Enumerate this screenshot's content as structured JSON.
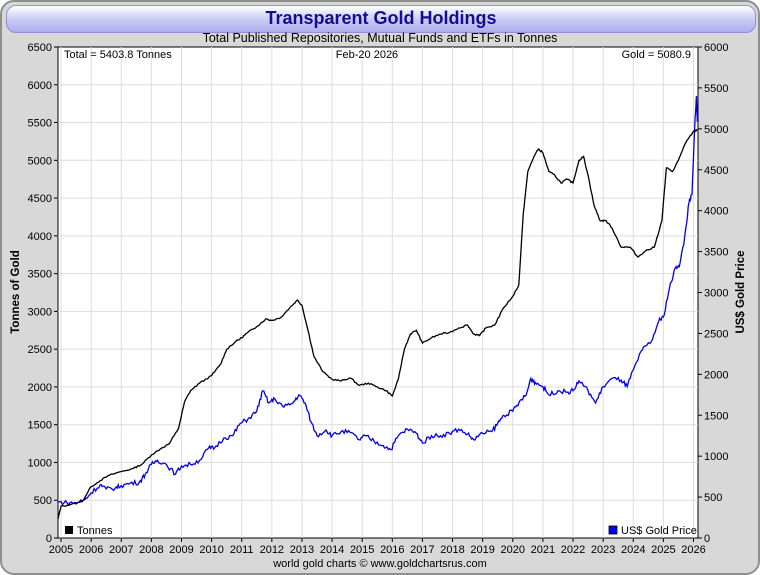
{
  "chart_data": {
    "type": "line",
    "title": "Transparent Gold Holdings",
    "subtitle": "Total Published Repositories, Mutual Funds and ETFs in Tonnes",
    "date_label": "Feb-20  2026",
    "total_label": "Total = 5403.8 Tonnes",
    "gold_label": "Gold = 5080.9",
    "ylabel_left": "Tonnes of Gold",
    "ylabel_right": "US$ Gold Price",
    "ylim_left": [
      0,
      6500
    ],
    "ylim_right": [
      0,
      6000
    ],
    "yticks_left": [
      "0",
      "500",
      "1000",
      "1500",
      "2000",
      "2500",
      "3000",
      "3500",
      "4000",
      "4500",
      "5000",
      "5500",
      "6000",
      "6500"
    ],
    "yticks_right": [
      "0",
      "500",
      "1000",
      "1500",
      "2000",
      "2500",
      "3000",
      "3500",
      "4000",
      "4500",
      "5000",
      "5500",
      "6000"
    ],
    "xticks": [
      "2005",
      "2006",
      "2007",
      "2008",
      "2009",
      "2010",
      "2011",
      "2012",
      "2013",
      "2014",
      "2015",
      "2016",
      "2017",
      "2018",
      "2019",
      "2020",
      "2021",
      "2022",
      "2023",
      "2024",
      "2025",
      "2026"
    ],
    "xlim": [
      2004.9,
      2026.15
    ],
    "grid": true,
    "legend_placement": "bottom",
    "footer": "world gold charts © www.goldchartsrus.com",
    "series": [
      {
        "name": "Tonnes",
        "axis": "left",
        "color": "#000000",
        "points": [
          [
            2004.9,
            250
          ],
          [
            2005.0,
            420
          ],
          [
            2005.3,
            440
          ],
          [
            2005.7,
            480
          ],
          [
            2006.0,
            680
          ],
          [
            2006.3,
            760
          ],
          [
            2006.6,
            830
          ],
          [
            2007.0,
            880
          ],
          [
            2007.4,
            920
          ],
          [
            2007.7,
            980
          ],
          [
            2008.0,
            1100
          ],
          [
            2008.3,
            1180
          ],
          [
            2008.6,
            1250
          ],
          [
            2008.9,
            1450
          ],
          [
            2009.1,
            1800
          ],
          [
            2009.3,
            1950
          ],
          [
            2009.6,
            2050
          ],
          [
            2010.0,
            2150
          ],
          [
            2010.3,
            2300
          ],
          [
            2010.5,
            2500
          ],
          [
            2010.8,
            2600
          ],
          [
            2011.0,
            2650
          ],
          [
            2011.2,
            2720
          ],
          [
            2011.5,
            2800
          ],
          [
            2011.8,
            2900
          ],
          [
            2012.0,
            2880
          ],
          [
            2012.3,
            2920
          ],
          [
            2012.6,
            3050
          ],
          [
            2012.85,
            3150
          ],
          [
            2013.0,
            3080
          ],
          [
            2013.2,
            2750
          ],
          [
            2013.4,
            2400
          ],
          [
            2013.7,
            2200
          ],
          [
            2014.0,
            2100
          ],
          [
            2014.3,
            2080
          ],
          [
            2014.6,
            2120
          ],
          [
            2014.9,
            2020
          ],
          [
            2015.2,
            2050
          ],
          [
            2015.5,
            2000
          ],
          [
            2015.8,
            1950
          ],
          [
            2016.0,
            1880
          ],
          [
            2016.2,
            2100
          ],
          [
            2016.4,
            2500
          ],
          [
            2016.6,
            2700
          ],
          [
            2016.8,
            2750
          ],
          [
            2017.0,
            2580
          ],
          [
            2017.3,
            2650
          ],
          [
            2017.6,
            2700
          ],
          [
            2017.9,
            2720
          ],
          [
            2018.2,
            2780
          ],
          [
            2018.5,
            2820
          ],
          [
            2018.7,
            2700
          ],
          [
            2018.9,
            2680
          ],
          [
            2019.1,
            2780
          ],
          [
            2019.4,
            2820
          ],
          [
            2019.7,
            3050
          ],
          [
            2020.0,
            3200
          ],
          [
            2020.2,
            3350
          ],
          [
            2020.35,
            4300
          ],
          [
            2020.5,
            4850
          ],
          [
            2020.7,
            5050
          ],
          [
            2020.85,
            5150
          ],
          [
            2021.0,
            5100
          ],
          [
            2021.2,
            4850
          ],
          [
            2021.4,
            4800
          ],
          [
            2021.6,
            4700
          ],
          [
            2021.8,
            4750
          ],
          [
            2022.0,
            4700
          ],
          [
            2022.2,
            5000
          ],
          [
            2022.35,
            5050
          ],
          [
            2022.5,
            4800
          ],
          [
            2022.7,
            4400
          ],
          [
            2022.9,
            4200
          ],
          [
            2023.1,
            4200
          ],
          [
            2023.3,
            4100
          ],
          [
            2023.6,
            3850
          ],
          [
            2023.9,
            3850
          ],
          [
            2024.15,
            3720
          ],
          [
            2024.4,
            3800
          ],
          [
            2024.7,
            3850
          ],
          [
            2024.95,
            4200
          ],
          [
            2025.1,
            4900
          ],
          [
            2025.3,
            4850
          ],
          [
            2025.5,
            5000
          ],
          [
            2025.7,
            5200
          ],
          [
            2025.85,
            5300
          ],
          [
            2026.0,
            5380
          ],
          [
            2026.13,
            5404
          ]
        ]
      },
      {
        "name": "US$ Gold Price",
        "axis": "right",
        "color": "#0000ee",
        "points": [
          [
            2004.9,
            440
          ],
          [
            2005.2,
            430
          ],
          [
            2005.5,
            430
          ],
          [
            2005.8,
            470
          ],
          [
            2006.0,
            550
          ],
          [
            2006.3,
            650
          ],
          [
            2006.5,
            600
          ],
          [
            2006.8,
            610
          ],
          [
            2007.0,
            640
          ],
          [
            2007.3,
            670
          ],
          [
            2007.6,
            680
          ],
          [
            2007.8,
            780
          ],
          [
            2008.0,
            900
          ],
          [
            2008.2,
            950
          ],
          [
            2008.5,
            900
          ],
          [
            2008.8,
            780
          ],
          [
            2009.0,
            880
          ],
          [
            2009.3,
            900
          ],
          [
            2009.6,
            950
          ],
          [
            2009.9,
            1100
          ],
          [
            2010.1,
            1100
          ],
          [
            2010.4,
            1220
          ],
          [
            2010.7,
            1250
          ],
          [
            2010.95,
            1400
          ],
          [
            2011.2,
            1450
          ],
          [
            2011.5,
            1550
          ],
          [
            2011.7,
            1800
          ],
          [
            2011.9,
            1650
          ],
          [
            2012.1,
            1700
          ],
          [
            2012.4,
            1600
          ],
          [
            2012.7,
            1650
          ],
          [
            2012.9,
            1750
          ],
          [
            2013.1,
            1650
          ],
          [
            2013.3,
            1420
          ],
          [
            2013.5,
            1250
          ],
          [
            2013.8,
            1320
          ],
          [
            2014.0,
            1250
          ],
          [
            2014.3,
            1300
          ],
          [
            2014.6,
            1290
          ],
          [
            2014.9,
            1200
          ],
          [
            2015.1,
            1250
          ],
          [
            2015.4,
            1180
          ],
          [
            2015.7,
            1130
          ],
          [
            2015.95,
            1080
          ],
          [
            2016.2,
            1250
          ],
          [
            2016.5,
            1330
          ],
          [
            2016.8,
            1280
          ],
          [
            2017.0,
            1160
          ],
          [
            2017.3,
            1250
          ],
          [
            2017.6,
            1250
          ],
          [
            2017.9,
            1280
          ],
          [
            2018.2,
            1330
          ],
          [
            2018.5,
            1270
          ],
          [
            2018.7,
            1200
          ],
          [
            2019.0,
            1280
          ],
          [
            2019.3,
            1300
          ],
          [
            2019.5,
            1400
          ],
          [
            2019.7,
            1500
          ],
          [
            2020.0,
            1550
          ],
          [
            2020.2,
            1650
          ],
          [
            2020.45,
            1750
          ],
          [
            2020.6,
            1950
          ],
          [
            2020.75,
            1900
          ],
          [
            2021.0,
            1850
          ],
          [
            2021.2,
            1750
          ],
          [
            2021.5,
            1800
          ],
          [
            2021.8,
            1780
          ],
          [
            2022.0,
            1800
          ],
          [
            2022.2,
            1920
          ],
          [
            2022.5,
            1800
          ],
          [
            2022.75,
            1650
          ],
          [
            2023.0,
            1850
          ],
          [
            2023.3,
            1950
          ],
          [
            2023.6,
            1930
          ],
          [
            2023.8,
            1850
          ],
          [
            2024.0,
            2050
          ],
          [
            2024.3,
            2300
          ],
          [
            2024.6,
            2400
          ],
          [
            2024.85,
            2650
          ],
          [
            2025.0,
            2700
          ],
          [
            2025.2,
            3050
          ],
          [
            2025.4,
            3300
          ],
          [
            2025.55,
            3350
          ],
          [
            2025.7,
            3650
          ],
          [
            2025.85,
            4100
          ],
          [
            2025.95,
            4200
          ],
          [
            2026.05,
            5100
          ],
          [
            2026.1,
            5400
          ],
          [
            2026.13,
            5081
          ]
        ]
      }
    ]
  }
}
